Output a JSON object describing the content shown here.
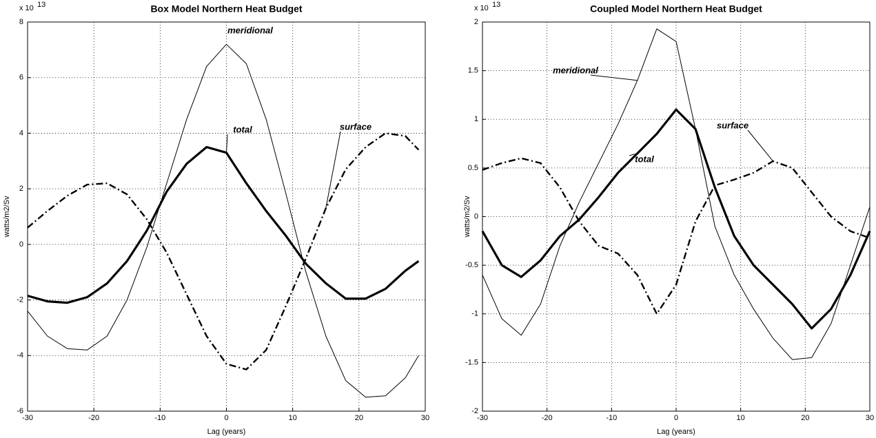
{
  "chart_data": [
    {
      "type": "line",
      "title": "Box Model Northern Heat Budget",
      "xlabel": "Lag (years)",
      "ylabel": "watts/m2/Sv",
      "multiplier": "x 10",
      "multiplier_exponent": "13",
      "x": [
        -30,
        -27,
        -24,
        -21,
        -18,
        -15,
        -12,
        -9,
        -6,
        -3,
        0,
        3,
        6,
        9,
        12,
        15,
        18,
        21,
        24,
        27,
        29
      ],
      "series": [
        {
          "name": "meridional",
          "color": "#000",
          "line_style": "thin",
          "values": [
            -2.4,
            -3.3,
            -3.75,
            -3.8,
            -3.3,
            -2.0,
            -0.1,
            2.2,
            4.5,
            6.4,
            7.2,
            6.5,
            4.5,
            1.8,
            -1.0,
            -3.3,
            -4.9,
            -5.5,
            -5.45,
            -4.8,
            -4.0
          ]
        },
        {
          "name": "total",
          "color": "#000",
          "line_style": "thick",
          "values": [
            -1.85,
            -2.05,
            -2.1,
            -1.9,
            -1.4,
            -0.6,
            0.5,
            1.9,
            2.9,
            3.5,
            3.3,
            2.2,
            1.2,
            0.3,
            -0.7,
            -1.4,
            -1.95,
            -1.95,
            -1.6,
            -0.95,
            -0.6
          ]
        },
        {
          "name": "surface",
          "color": "#000",
          "line_style": "dash-dot",
          "values": [
            0.6,
            1.2,
            1.75,
            2.15,
            2.2,
            1.8,
            0.9,
            -0.3,
            -1.8,
            -3.3,
            -4.3,
            -4.5,
            -3.8,
            -2.2,
            -0.5,
            1.3,
            2.7,
            3.5,
            4.0,
            3.9,
            3.4
          ]
        }
      ],
      "xlim": [
        -30,
        30
      ],
      "xticks": [
        -30,
        -20,
        -10,
        0,
        10,
        20,
        30
      ],
      "ylim": [
        -6,
        8
      ],
      "yticks": [
        -6,
        -4,
        -2,
        0,
        2,
        4,
        6,
        8
      ],
      "grid": true
    },
    {
      "type": "line",
      "title": "Coupled Model Northern Heat Budget",
      "xlabel": "Lag (years)",
      "ylabel": "watts/m2/Sv",
      "multiplier": "x 10",
      "multiplier_exponent": "13",
      "x": [
        -30,
        -27,
        -24,
        -21,
        -18,
        -15,
        -12,
        -9,
        -6,
        -3,
        0,
        3,
        6,
        9,
        12,
        15,
        18,
        21,
        24,
        27,
        30
      ],
      "series": [
        {
          "name": "meridional",
          "color": "#000",
          "line_style": "thin",
          "values": [
            -0.6,
            -1.05,
            -1.22,
            -0.9,
            -0.3,
            0.15,
            0.55,
            0.95,
            1.4,
            1.93,
            1.8,
            0.9,
            -0.1,
            -0.6,
            -0.95,
            -1.25,
            -1.47,
            -1.45,
            -1.1,
            -0.5,
            0.1
          ]
        },
        {
          "name": "total",
          "color": "#000",
          "line_style": "thick",
          "values": [
            -0.15,
            -0.5,
            -0.62,
            -0.45,
            -0.2,
            -0.03,
            0.2,
            0.45,
            0.65,
            0.85,
            1.1,
            0.9,
            0.3,
            -0.2,
            -0.5,
            -0.7,
            -0.9,
            -1.15,
            -0.95,
            -0.6,
            -0.15
          ]
        },
        {
          "name": "surface",
          "color": "#000",
          "line_style": "dash-dot",
          "values": [
            0.48,
            0.55,
            0.6,
            0.55,
            0.3,
            -0.05,
            -0.3,
            -0.38,
            -0.6,
            -1.0,
            -0.7,
            -0.05,
            0.32,
            0.38,
            0.45,
            0.57,
            0.5,
            0.25,
            0.0,
            -0.15,
            -0.22
          ]
        }
      ],
      "xlim": [
        -30,
        30
      ],
      "xticks": [
        -30,
        -20,
        -10,
        0,
        10,
        20,
        30
      ],
      "ylim": [
        -2,
        2
      ],
      "yticks": [
        -2,
        -1.5,
        -1,
        -0.5,
        0,
        0.5,
        1,
        1.5,
        2
      ],
      "grid": true
    }
  ]
}
